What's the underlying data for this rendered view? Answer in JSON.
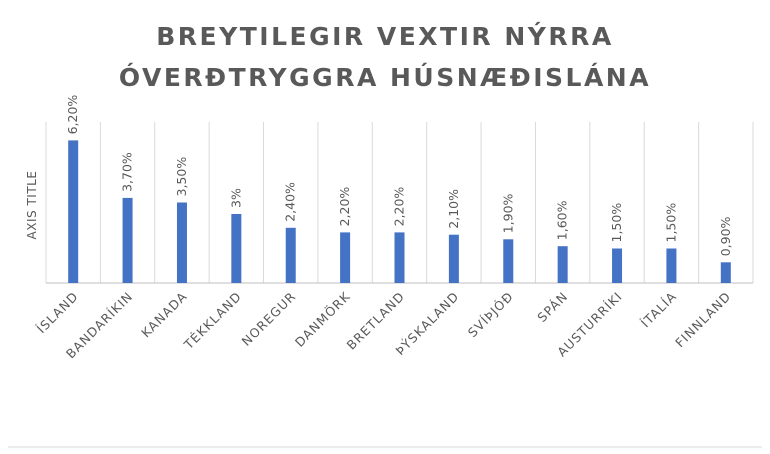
{
  "chart_data": {
    "type": "bar",
    "title_lines": [
      "BREYTILEGIR VEXTIR NÝRRA",
      "ÓVERÐTRYGGRA HÚSNÆÐISLÁNA"
    ],
    "ylabel": "AXIS TITLE",
    "xlabel": "",
    "categories": [
      "ÍSLAND",
      "BANDARÍKIN",
      "KANADA",
      "TÉKKLAND",
      "NOREGUR",
      "DANMÖRK",
      "BRETLAND",
      "ÞÝSKALAND",
      "SVÍÞJÓÐ",
      "SPÁN",
      "AUSTURRÍKI",
      "ÍTALÍA",
      "FINNLAND"
    ],
    "values": [
      6.2,
      3.7,
      3.5,
      3.0,
      2.4,
      2.2,
      2.2,
      2.1,
      1.9,
      1.6,
      1.5,
      1.5,
      0.9
    ],
    "data_labels": [
      "6,20%",
      "3,70%",
      "3,50%",
      "3%",
      "2,40%",
      "2,20%",
      "2,20%",
      "2,10%",
      "1,90%",
      "1,60%",
      "1,50%",
      "1,50%",
      "0,90%"
    ],
    "ylim": [
      0,
      7
    ],
    "grid": true,
    "legend": "none",
    "colors": {
      "bar": "#4472c4",
      "text": "#595959",
      "grid": "#d9d9d9"
    }
  }
}
